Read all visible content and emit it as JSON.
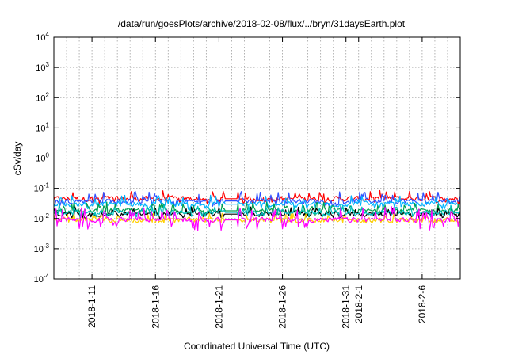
{
  "chart_data": {
    "type": "line",
    "title": "/data/run/goesPlots/archive/2018-02-08/flux/../bryn/31daysEarth.plot",
    "xlabel": "Coordinated Universal Time (UTC)",
    "ylabel": "cSv/day",
    "yscale": "log",
    "grid": true,
    "ylim": [
      0.0001,
      10000
    ],
    "xlim": [
      "2018-01-08",
      "2018-02-09"
    ],
    "y_ticks": [
      {
        "value": 0.0001,
        "base": "10",
        "exp": "-4"
      },
      {
        "value": 0.001,
        "base": "10",
        "exp": "-3"
      },
      {
        "value": 0.01,
        "base": "10",
        "exp": "-2"
      },
      {
        "value": 0.1,
        "base": "10",
        "exp": "-1"
      },
      {
        "value": 1,
        "base": "10",
        "exp": "0"
      },
      {
        "value": 10,
        "base": "10",
        "exp": "1"
      },
      {
        "value": 100,
        "base": "10",
        "exp": "2"
      },
      {
        "value": 1000,
        "base": "10",
        "exp": "3"
      },
      {
        "value": 10000,
        "base": "10",
        "exp": "4"
      }
    ],
    "x_ticks": [
      {
        "date": "2018-01-11",
        "label": "2018-1-11"
      },
      {
        "date": "2018-01-16",
        "label": "2018-1-16"
      },
      {
        "date": "2018-01-21",
        "label": "2018-1-21"
      },
      {
        "date": "2018-01-26",
        "label": "2018-1-26"
      },
      {
        "date": "2018-01-31",
        "label": "2018-1-31"
      },
      {
        "date": "2018-02-01",
        "label": "2018-2-1"
      },
      {
        "date": "2018-02-06",
        "label": "2018-2-6"
      }
    ],
    "gap": [
      "2018-01-21",
      "2018-01-22"
    ],
    "series": [
      {
        "color": "#ff0000",
        "typical": 0.045,
        "min": 0.03,
        "max": 0.085
      },
      {
        "color": "#3050ff",
        "typical": 0.038,
        "min": 0.025,
        "max": 0.08
      },
      {
        "color": "#00b4ff",
        "typical": 0.03,
        "min": 0.02,
        "max": 0.06
      },
      {
        "color": "#00a050",
        "typical": 0.018,
        "min": 0.012,
        "max": 0.035
      },
      {
        "color": "#000000",
        "typical": 0.014,
        "min": 0.01,
        "max": 0.025
      },
      {
        "color": "#00c0c0",
        "typical": 0.016,
        "min": 0.011,
        "max": 0.03
      },
      {
        "color": "#ffd000",
        "typical": 0.009,
        "min": 0.007,
        "max": 0.015
      },
      {
        "color": "#ff00ff",
        "typical": 0.009,
        "min": 0.004,
        "max": 0.025
      }
    ]
  }
}
